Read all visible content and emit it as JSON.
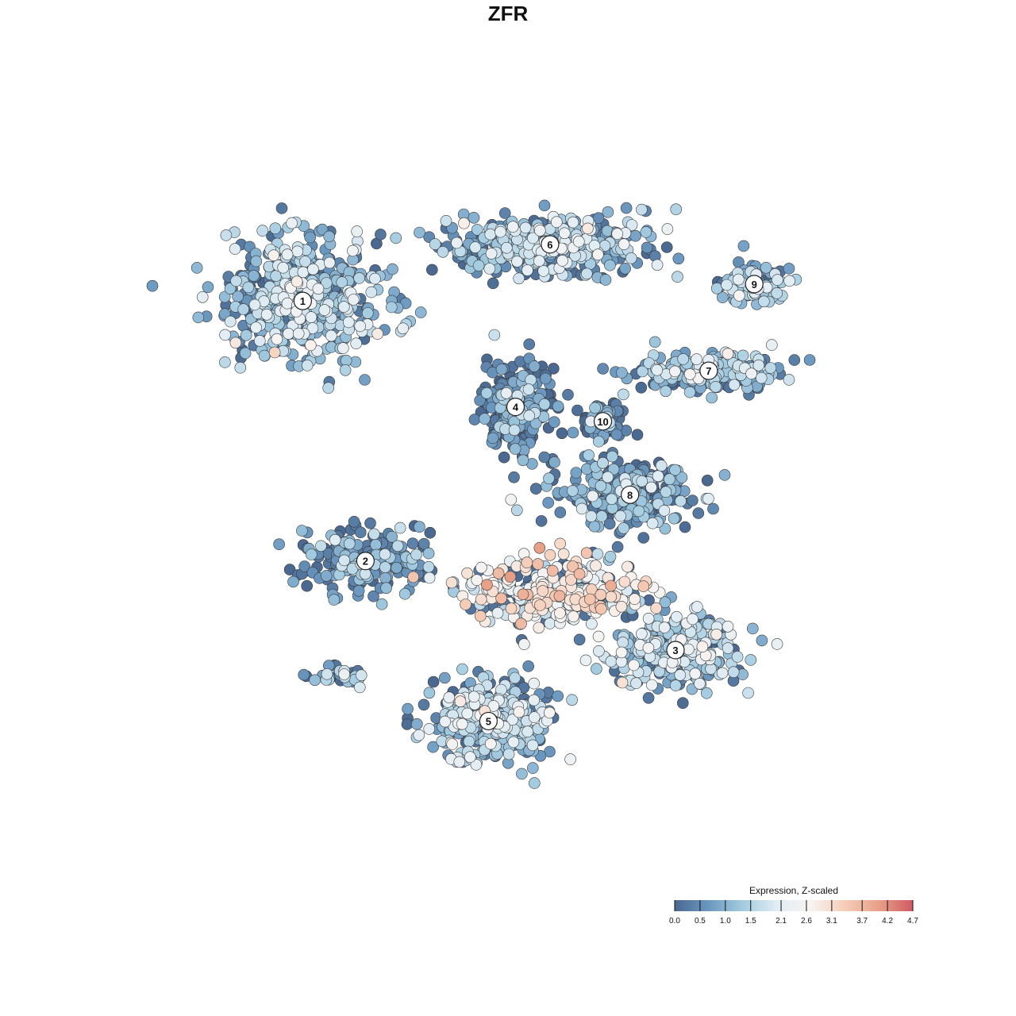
{
  "chart_data": {
    "type": "scatter",
    "title": "ZFR",
    "xlabel": "",
    "ylabel": "",
    "grid": false,
    "legend": {
      "title": "Expression, Z-scaled",
      "placement": "bottom-right",
      "ticks": [
        "0.0",
        "0.5",
        "1.0",
        "1.5",
        "2.1",
        "2.6",
        "3.1",
        "3.7",
        "4.2",
        "4.7"
      ],
      "tick_values": [
        0.0,
        0.5,
        1.0,
        1.5,
        2.1,
        2.6,
        3.1,
        3.7,
        4.2,
        4.7
      ],
      "range": [
        0.0,
        4.7
      ],
      "colors": [
        "#4a6890",
        "#6b98c0",
        "#a3cbe0",
        "#e1edf4",
        "#f7f4f2",
        "#f5cdb8",
        "#e8a088",
        "#d05a62"
      ]
    },
    "xlim": [
      -30,
      30
    ],
    "ylim": [
      -30,
      30
    ],
    "clusters": [
      {
        "label": "1",
        "x": -18.3,
        "y": 17.2,
        "sx": 5.5,
        "sy": 4.8,
        "n": 520,
        "mean": 1.3
      },
      {
        "label": "6",
        "x": 1.8,
        "y": 21.9,
        "sx": 7.5,
        "sy": 2.2,
        "n": 420,
        "mean": 1.2
      },
      {
        "label": "9",
        "x": 18.4,
        "y": 18.6,
        "sx": 2.6,
        "sy": 1.3,
        "n": 110,
        "mean": 1.1
      },
      {
        "label": "7",
        "x": 14.7,
        "y": 11.4,
        "sx": 5.2,
        "sy": 1.4,
        "n": 230,
        "mean": 1.1
      },
      {
        "label": "4",
        "x": -1.0,
        "y": 8.4,
        "sx": 2.7,
        "sy": 3.0,
        "n": 300,
        "mean": 0.35
      },
      {
        "label": "10",
        "x": 6.1,
        "y": 7.2,
        "sx": 1.8,
        "sy": 1.7,
        "n": 70,
        "mean": 0.35
      },
      {
        "label": "8",
        "x": 8.3,
        "y": 1.1,
        "sx": 5.0,
        "sy": 2.5,
        "n": 260,
        "mean": 0.75
      },
      {
        "label": "2",
        "x": -13.2,
        "y": -4.4,
        "sx": 4.8,
        "sy": 2.6,
        "n": 190,
        "mean": 0.6
      },
      {
        "label": "3",
        "x": 12.0,
        "y": -11.8,
        "sx": 4.6,
        "sy": 2.6,
        "n": 340,
        "mean": 1.45
      },
      {
        "label": "5",
        "x": -3.2,
        "y": -17.7,
        "sx": 4.4,
        "sy": 3.0,
        "n": 360,
        "mean": 1.35
      },
      {
        "label": "",
        "x": 2.0,
        "y": -7.0,
        "sx": 6.0,
        "sy": 2.5,
        "n": 320,
        "mean": 2.5
      },
      {
        "label": "",
        "x": -15.3,
        "y": -13.8,
        "sx": 2.5,
        "sy": 0.9,
        "n": 30,
        "mean": 1.3
      }
    ]
  }
}
